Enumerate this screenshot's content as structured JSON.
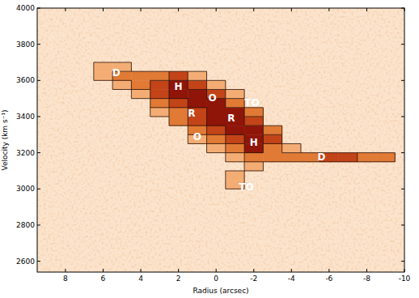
{
  "chart_data": {
    "type": "heatmap",
    "x_label": "Radius (arcsec)",
    "y_label": "Velocity (km s⁻¹)",
    "xlim": [
      9.5,
      -10
    ],
    "ylim": [
      2540,
      4000
    ],
    "xticks": [
      8,
      6,
      4,
      2,
      0,
      -2,
      -4,
      -6,
      -8,
      -10
    ],
    "yticks": [
      2600,
      2800,
      3000,
      3200,
      3400,
      3600,
      3800,
      4000
    ],
    "x": [
      9,
      8,
      7,
      6,
      5,
      4,
      3,
      2,
      1,
      0,
      -1,
      -2,
      -3,
      -4,
      -5,
      -6,
      -7,
      -8,
      -9
    ],
    "y": [
      3025,
      3075,
      3125,
      3175,
      3225,
      3275,
      3325,
      3375,
      3425,
      3475,
      3525,
      3575,
      3625,
      3675,
      3725,
      3775
    ],
    "cells": [
      [
        0,
        0,
        0,
        0,
        0,
        0,
        0,
        0,
        0,
        0,
        1,
        0,
        0,
        0,
        0,
        0,
        0,
        0,
        0
      ],
      [
        0,
        0,
        0,
        0,
        0,
        0,
        0,
        0,
        0,
        0,
        1,
        0,
        0,
        0,
        0,
        0,
        0,
        0,
        0
      ],
      [
        0,
        0,
        0,
        0,
        0,
        0,
        0,
        0,
        0,
        0,
        0,
        1,
        0,
        0,
        0,
        0,
        0,
        0,
        0
      ],
      [
        0,
        0,
        0,
        0,
        0,
        0,
        0,
        0,
        0,
        0,
        1,
        2,
        2,
        2,
        2,
        3,
        3,
        2,
        2
      ],
      [
        0,
        0,
        0,
        0,
        0,
        0,
        0,
        0,
        0,
        1,
        2,
        4,
        2,
        1,
        0,
        0,
        0,
        0,
        0
      ],
      [
        0,
        0,
        0,
        0,
        0,
        0,
        0,
        0,
        1,
        2,
        3,
        4,
        3,
        0,
        0,
        0,
        0,
        0,
        0
      ],
      [
        0,
        0,
        0,
        0,
        0,
        0,
        0,
        0,
        2,
        3,
        4,
        4,
        2,
        0,
        0,
        0,
        0,
        0,
        0
      ],
      [
        0,
        0,
        0,
        0,
        0,
        0,
        0,
        2,
        3,
        4,
        4,
        3,
        0,
        0,
        0,
        0,
        0,
        0,
        0
      ],
      [
        0,
        0,
        0,
        0,
        0,
        0,
        1,
        2,
        3,
        4,
        4,
        2,
        0,
        0,
        0,
        0,
        0,
        0,
        0
      ],
      [
        0,
        0,
        0,
        0,
        0,
        0,
        2,
        3,
        4,
        4,
        2,
        0,
        0,
        0,
        0,
        0,
        0,
        0,
        0
      ],
      [
        0,
        0,
        0,
        0,
        0,
        1,
        3,
        4,
        4,
        3,
        1,
        0,
        0,
        0,
        0,
        0,
        0,
        0,
        0
      ],
      [
        0,
        0,
        0,
        0,
        1,
        2,
        3,
        4,
        3,
        1,
        0,
        0,
        0,
        0,
        0,
        0,
        0,
        0,
        0
      ],
      [
        0,
        0,
        0,
        1,
        2,
        2,
        2,
        3,
        1,
        0,
        0,
        0,
        0,
        0,
        0,
        0,
        0,
        0,
        0
      ],
      [
        0,
        0,
        0,
        1,
        1,
        0,
        0,
        0,
        0,
        0,
        0,
        0,
        0,
        0,
        0,
        0,
        0,
        0,
        0
      ],
      [
        0,
        0,
        0,
        0,
        0,
        0,
        0,
        0,
        0,
        0,
        0,
        0,
        0,
        0,
        0,
        0,
        0,
        0,
        0
      ],
      [
        0,
        0,
        0,
        0,
        0,
        0,
        0,
        0,
        0,
        0,
        0,
        0,
        0,
        0,
        0,
        0,
        0,
        0,
        0
      ]
    ],
    "colors": [
      "#fbe3cc",
      "#f3ad74",
      "#e07a35",
      "#c24418",
      "#8f1509"
    ],
    "annotations": [
      {
        "text": "D",
        "x": 5.3,
        "y": 3640
      },
      {
        "text": "H",
        "x": 2.0,
        "y": 3565
      },
      {
        "text": "O",
        "x": 0.2,
        "y": 3505
      },
      {
        "text": "TO",
        "x": -1.9,
        "y": 3475
      },
      {
        "text": "R",
        "x": 1.3,
        "y": 3420
      },
      {
        "text": "R",
        "x": -0.8,
        "y": 3390
      },
      {
        "text": "O",
        "x": 1.0,
        "y": 3290
      },
      {
        "text": "H",
        "x": -2.0,
        "y": 3255
      },
      {
        "text": "D",
        "x": -5.6,
        "y": 3175
      },
      {
        "text": "TO",
        "x": -1.6,
        "y": 3010
      }
    ]
  }
}
